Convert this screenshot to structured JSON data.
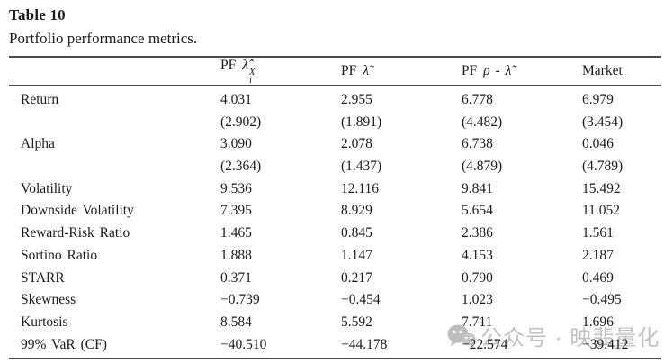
{
  "page": {
    "title": "Table 10",
    "caption": "Portfolio performance metrics."
  },
  "table": {
    "columns": [
      {
        "text": "PF",
        "math": "λ̂",
        "sup": "X",
        "sub": "i"
      },
      {
        "text": "PF",
        "math": "λ̃",
        "sup": "",
        "sub": ""
      },
      {
        "text": "PF",
        "math": "ρ - λ̃",
        "sup": "",
        "sub": ""
      },
      {
        "text": "Market",
        "math": "",
        "sup": "",
        "sub": ""
      }
    ],
    "rows": [
      {
        "label": "Return",
        "values": [
          "4.031",
          "2.955",
          "6.778",
          "6.979"
        ]
      },
      {
        "label": "",
        "values": [
          "(2.902)",
          "(1.891)",
          "(4.482)",
          "(3.454)"
        ]
      },
      {
        "label": "Alpha",
        "values": [
          "3.090",
          "2.078",
          "6.738",
          "0.046"
        ]
      },
      {
        "label": "",
        "values": [
          "(2.364)",
          "(1.437)",
          "(4.879)",
          "(4.789)"
        ]
      },
      {
        "label": "Volatility",
        "values": [
          "9.536",
          "12.116",
          "9.841",
          "15.492"
        ]
      },
      {
        "label": "Downside Volatility",
        "values": [
          "7.395",
          "8.929",
          "5.654",
          "11.052"
        ]
      },
      {
        "label": "Reward-Risk Ratio",
        "values": [
          "1.465",
          "0.845",
          "2.386",
          "1.561"
        ]
      },
      {
        "label": "Sortino Ratio",
        "values": [
          "1.888",
          "1.147",
          "4.153",
          "2.187"
        ]
      },
      {
        "label": "STARR",
        "values": [
          "0.371",
          "0.217",
          "0.790",
          "0.469"
        ]
      },
      {
        "label": "Skewness",
        "values": [
          "−0.739",
          "−0.454",
          "1.023",
          "−0.495"
        ]
      },
      {
        "label": "Kurtosis",
        "values": [
          "8.584",
          "5.592",
          "7.711",
          "1.696"
        ]
      },
      {
        "label": "99% VaR (CF)",
        "values": [
          "−40.510",
          "−44.178",
          "−22.574",
          "−39.412"
        ]
      }
    ]
  },
  "watermark": {
    "text": "公众号 · 映翡量化",
    "color": "#c1c1c1"
  },
  "colors": {
    "rule": "#4a4a4a",
    "text": "#1b1b1b",
    "background": "#ffffff"
  }
}
